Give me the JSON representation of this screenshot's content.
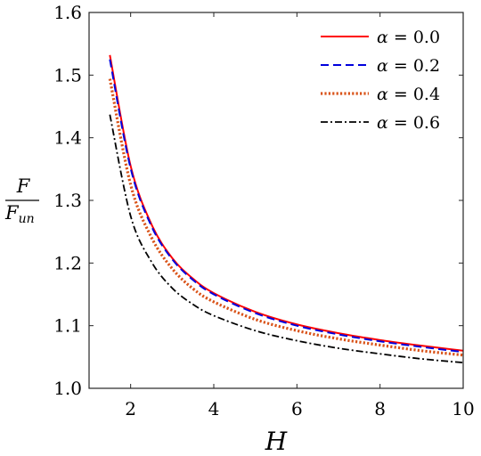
{
  "chart_data": {
    "type": "line",
    "xlabel": "H",
    "ylabel": {
      "numerator": "F",
      "denominator": "F",
      "denominator_subscript": "un"
    },
    "xlim": [
      1,
      10
    ],
    "ylim": [
      1.0,
      1.6
    ],
    "xticks": [
      2,
      4,
      6,
      8,
      10
    ],
    "xtick_labels": [
      "2",
      "4",
      "6",
      "8",
      "10"
    ],
    "yticks": [
      1.0,
      1.1,
      1.2,
      1.3,
      1.4,
      1.5,
      1.6
    ],
    "ytick_labels": [
      "1.0",
      "1.1",
      "1.2",
      "1.3",
      "1.4",
      "1.5",
      "1.6"
    ],
    "grid": false,
    "legend_position": "top-right",
    "x": [
      1.5,
      2,
      2.5,
      3,
      3.5,
      4,
      5,
      6,
      7,
      8,
      9,
      10
    ],
    "series": [
      {
        "name": "α = 0.0",
        "color": "#ff0000",
        "dash": "solid",
        "values": [
          1.532,
          1.355,
          1.262,
          1.208,
          1.175,
          1.152,
          1.122,
          1.102,
          1.088,
          1.077,
          1.068,
          1.06
        ]
      },
      {
        "name": "α = 0.2",
        "color": "#0000dd",
        "dash": "dashed",
        "values": [
          1.525,
          1.351,
          1.259,
          1.206,
          1.173,
          1.15,
          1.12,
          1.1,
          1.086,
          1.075,
          1.066,
          1.058
        ]
      },
      {
        "name": "α = 0.4",
        "color": "#d95319",
        "dash": "dotted",
        "values": [
          1.494,
          1.325,
          1.241,
          1.191,
          1.159,
          1.138,
          1.11,
          1.092,
          1.079,
          1.069,
          1.06,
          1.053
        ]
      },
      {
        "name": "α = 0.6",
        "color": "#000000",
        "dash": "dashdot",
        "values": [
          1.437,
          1.275,
          1.202,
          1.16,
          1.134,
          1.116,
          1.092,
          1.076,
          1.064,
          1.055,
          1.047,
          1.041
        ]
      }
    ],
    "legend": [
      {
        "greek": "α",
        "rest": " = 0.0"
      },
      {
        "greek": "α",
        "rest": " = 0.2"
      },
      {
        "greek": "α",
        "rest": " = 0.4"
      },
      {
        "greek": "α",
        "rest": " = 0.6"
      }
    ]
  }
}
